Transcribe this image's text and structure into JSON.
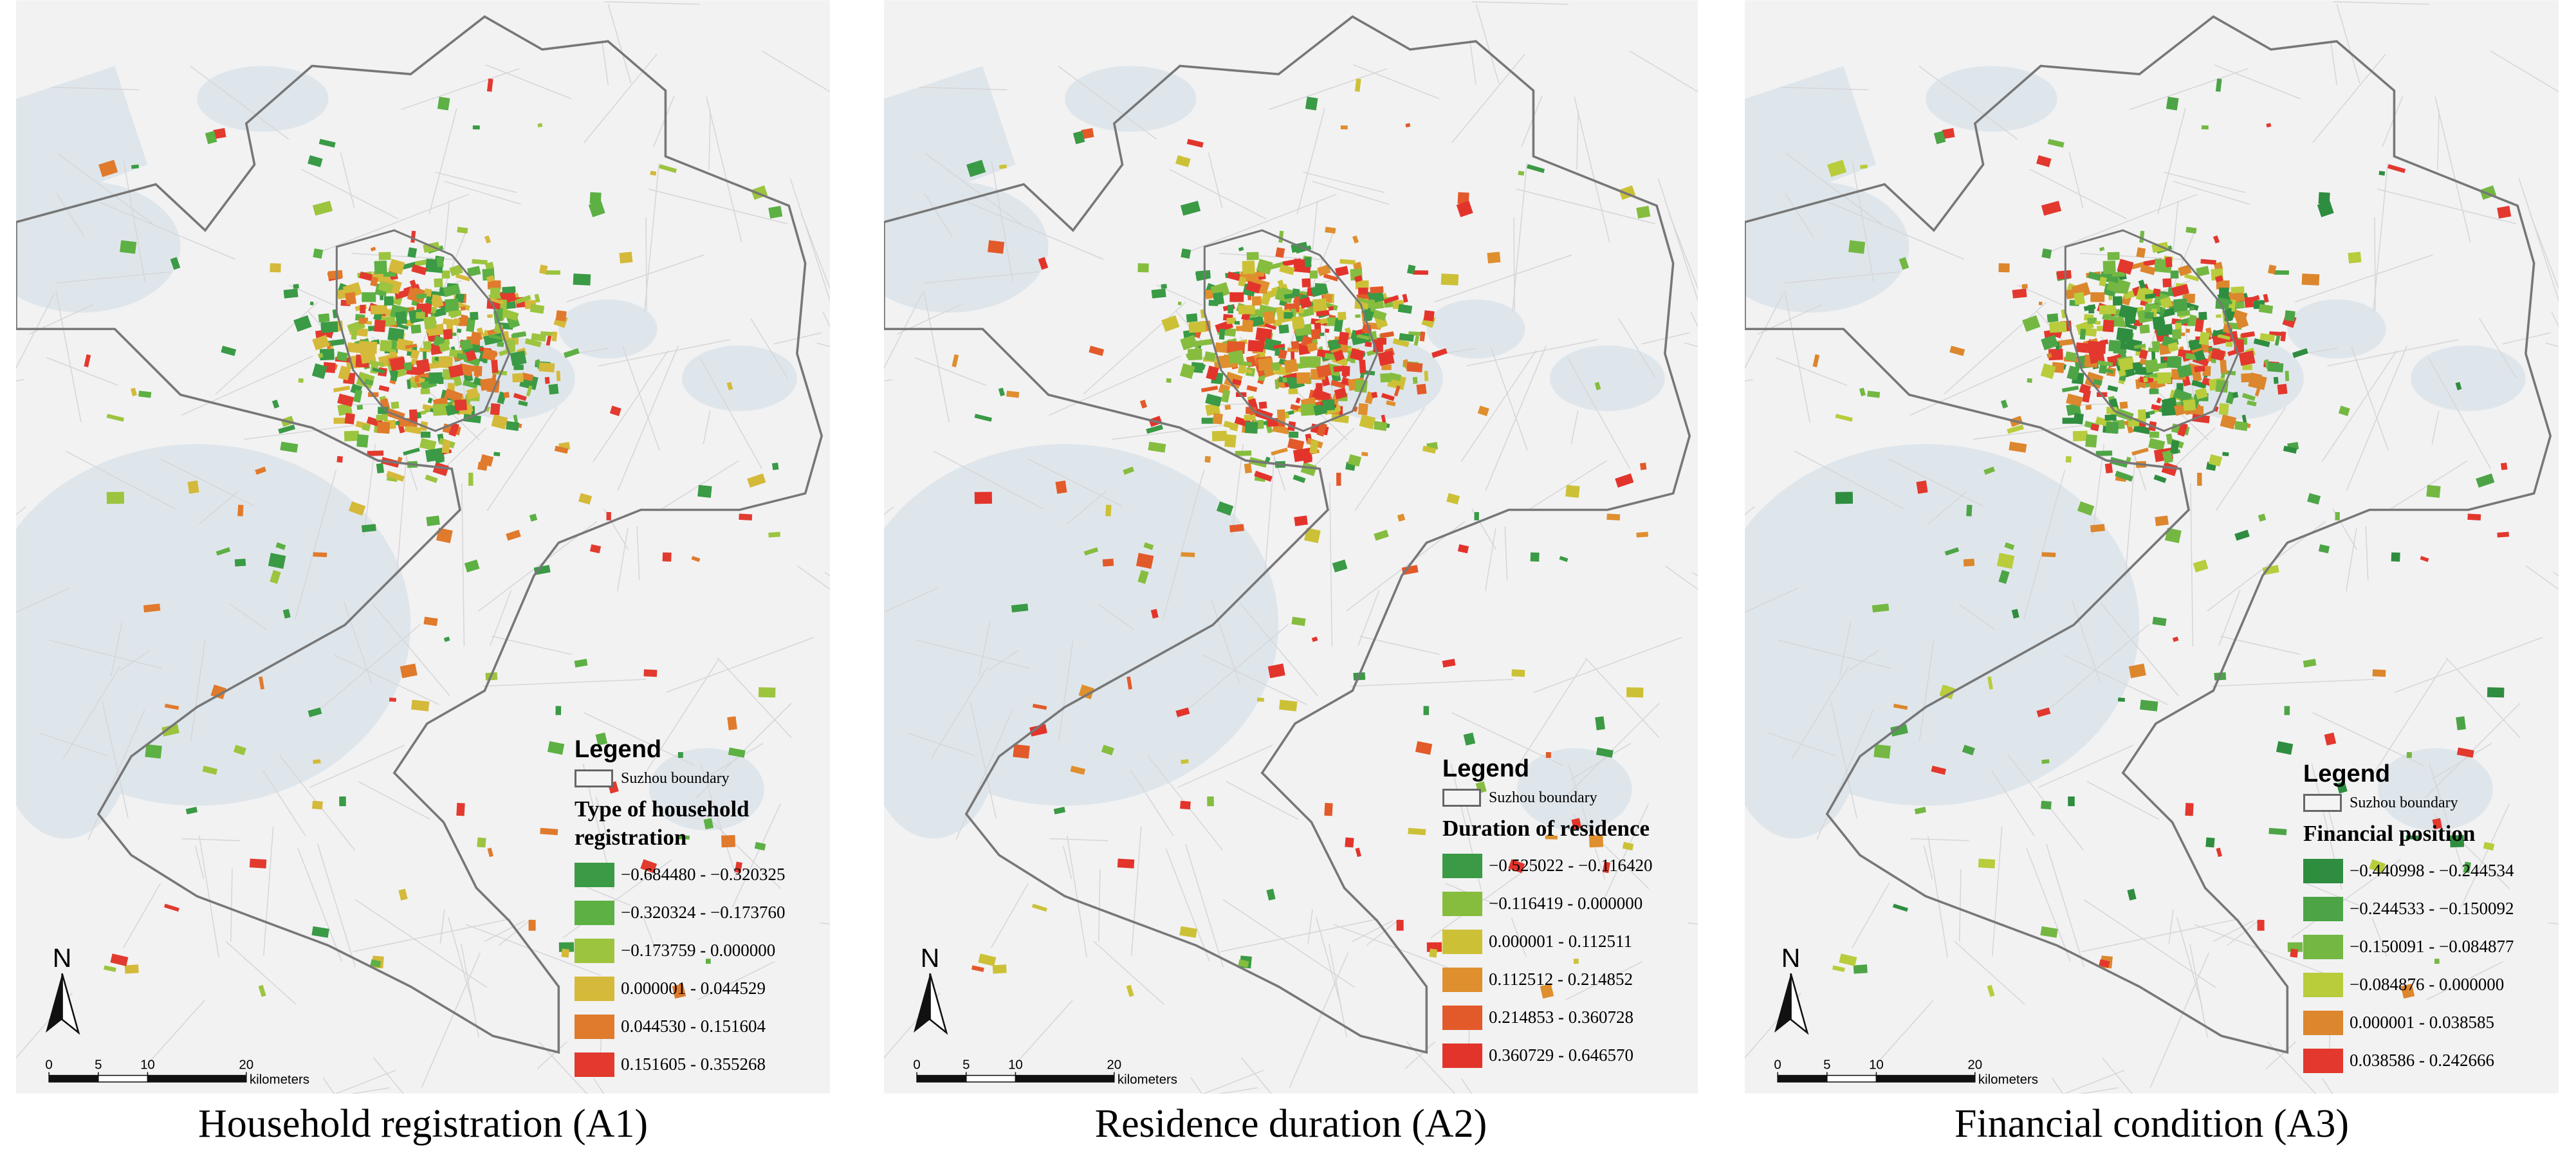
{
  "panels": [
    {
      "caption": "Household registration (A1)",
      "legend": {
        "heading": "Legend",
        "boundary_label": "Suzhou boundary",
        "title": "Type of household registration",
        "classes": [
          {
            "label": "−0.684480 - −0.320325",
            "color": "#3a9a45"
          },
          {
            "label": "−0.320324 - −0.173760",
            "color": "#5db043"
          },
          {
            "label": "−0.173759 - 0.000000",
            "color": "#9cc43e"
          },
          {
            "label": "0.000001 - 0.044529",
            "color": "#d4b93a"
          },
          {
            "label": "0.044530 - 0.151604",
            "color": "#e07a2c"
          },
          {
            "label": "0.151605 - 0.355268",
            "color": "#e23a2e"
          }
        ]
      },
      "north": "N",
      "scale": {
        "ticks": [
          0,
          5,
          10,
          20
        ],
        "unit": "kilometers"
      }
    },
    {
      "caption": "Residence duration (A2)",
      "legend": {
        "heading": "Legend",
        "boundary_label": "Suzhou boundary",
        "title": "Duration of residence",
        "classes": [
          {
            "label": "−0.525022 - −0.116420",
            "color": "#3a9a45"
          },
          {
            "label": "−0.116419 - 0.000000",
            "color": "#86bd3f"
          },
          {
            "label": "0.000001 - 0.112511",
            "color": "#ccc136"
          },
          {
            "label": "0.112512 - 0.214852",
            "color": "#df8f2e"
          },
          {
            "label": "0.214853 - 0.360728",
            "color": "#e25a2a"
          },
          {
            "label": "0.360729 - 0.646570",
            "color": "#e3342c"
          }
        ]
      },
      "north": "N",
      "scale": {
        "ticks": [
          0,
          5,
          10,
          20
        ],
        "unit": "kilometers"
      }
    },
    {
      "caption": "Financial condition (A3)",
      "legend": {
        "heading": "Legend",
        "boundary_label": "Suzhou boundary",
        "title": "Financial position",
        "classes": [
          {
            "label": "−0.440998 - −0.244534",
            "color": "#2f8d3f"
          },
          {
            "label": "−0.244533 - −0.150092",
            "color": "#4ca446"
          },
          {
            "label": "−0.150091 - −0.084877",
            "color": "#74b843"
          },
          {
            "label": "−0.084876 - 0.000000",
            "color": "#b8cc3c"
          },
          {
            "label": "0.000001 - 0.038585",
            "color": "#dc862d"
          },
          {
            "label": "0.038586 - 0.242666",
            "color": "#e2382e"
          }
        ]
      },
      "north": "N",
      "scale": {
        "ticks": [
          0,
          5,
          10,
          20
        ],
        "unit": "kilometers"
      }
    }
  ]
}
